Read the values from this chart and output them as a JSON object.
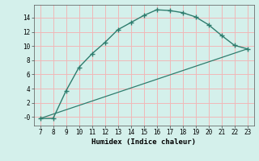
{
  "curve_x": [
    7,
    8,
    9,
    10,
    11,
    12,
    13,
    14,
    15,
    16,
    17,
    18,
    19,
    20,
    21,
    22,
    23
  ],
  "curve_y": [
    -0.2,
    -0.2,
    3.7,
    7.0,
    8.9,
    10.5,
    12.3,
    13.3,
    14.3,
    15.1,
    15.0,
    14.7,
    14.1,
    13.0,
    11.5,
    10.1,
    9.6
  ],
  "line_x": [
    7,
    23
  ],
  "line_y": [
    -0.2,
    9.6
  ],
  "color": "#2e7d6e",
  "bg_color": "#d4f0eb",
  "grid_color": "#f0b8b8",
  "xlabel": "Humidex (Indice chaleur)",
  "xlim": [
    6.5,
    23.5
  ],
  "ylim": [
    -1.2,
    15.8
  ],
  "xticks": [
    7,
    8,
    9,
    10,
    11,
    12,
    13,
    14,
    15,
    16,
    17,
    18,
    19,
    20,
    21,
    22,
    23
  ],
  "yticks": [
    0,
    2,
    4,
    6,
    8,
    10,
    12,
    14
  ],
  "ytick_labels": [
    "-0",
    "2",
    "4",
    "6",
    "8",
    "10",
    "12",
    "14"
  ]
}
